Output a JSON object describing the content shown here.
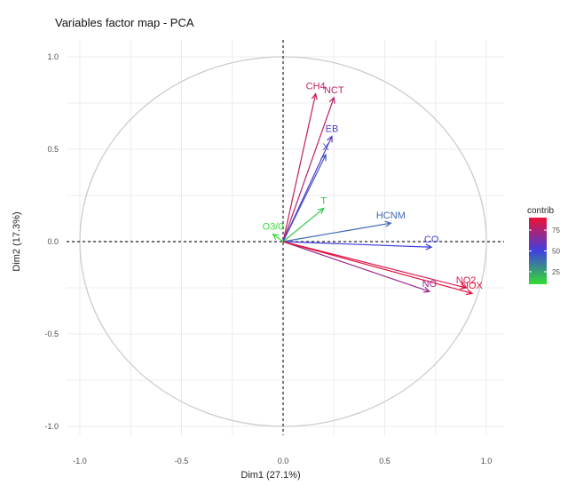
{
  "chart_data": {
    "type": "scatter",
    "title": "Variables factor map - PCA",
    "xlabel": "Dim1 (27.1%)",
    "ylabel": "Dim2 (17.3%)",
    "xlim": [
      -1.0,
      1.0
    ],
    "ylim": [
      -1.0,
      1.0
    ],
    "x_ticks": [
      "-1.0",
      "-0.5",
      "0.0",
      "0.5",
      "1.0"
    ],
    "y_ticks": [
      "1.0",
      "0.5",
      "0.0",
      "-0.5",
      "-1.0"
    ],
    "grid": true,
    "unit_circle": true,
    "legend": {
      "title": "contrib",
      "position": "right",
      "ticks": [
        "75",
        "50",
        "25"
      ],
      "tick_values": [
        75,
        50,
        25
      ],
      "range": [
        10,
        90
      ]
    },
    "colors": {
      "low": "#33dd33",
      "mid": "#4040e0",
      "high": "#ee1133",
      "circle": "#cccccc",
      "grid": "#ececec"
    },
    "variables": [
      {
        "name": "CH4",
        "label": "CH4",
        "x": 0.16,
        "y": 0.8,
        "contrib": 80
      },
      {
        "name": "NCT",
        "label": "NCT",
        "x": 0.25,
        "y": 0.78,
        "contrib": 78
      },
      {
        "name": "EB",
        "label": "EB",
        "x": 0.24,
        "y": 0.57,
        "contrib": 55
      },
      {
        "name": "X",
        "label": "X",
        "x": 0.21,
        "y": 0.47,
        "contrib": 45
      },
      {
        "name": "T",
        "label": "T",
        "x": 0.2,
        "y": 0.18,
        "contrib": 15
      },
      {
        "name": "O3",
        "label": "O3/0",
        "x": -0.05,
        "y": 0.04,
        "contrib": 10
      },
      {
        "name": "HCNM",
        "label": "HCNM",
        "x": 0.53,
        "y": 0.1,
        "contrib": 40
      },
      {
        "name": "CO",
        "label": "CO",
        "x": 0.73,
        "y": -0.03,
        "contrib": 50
      },
      {
        "name": "NO",
        "label": "NO",
        "x": 0.72,
        "y": -0.27,
        "contrib": 70
      },
      {
        "name": "NO2",
        "label": "NO2",
        "x": 0.9,
        "y": -0.25,
        "contrib": 85
      },
      {
        "name": "NOX",
        "label": "NOX",
        "x": 0.93,
        "y": -0.28,
        "contrib": 88
      }
    ]
  }
}
